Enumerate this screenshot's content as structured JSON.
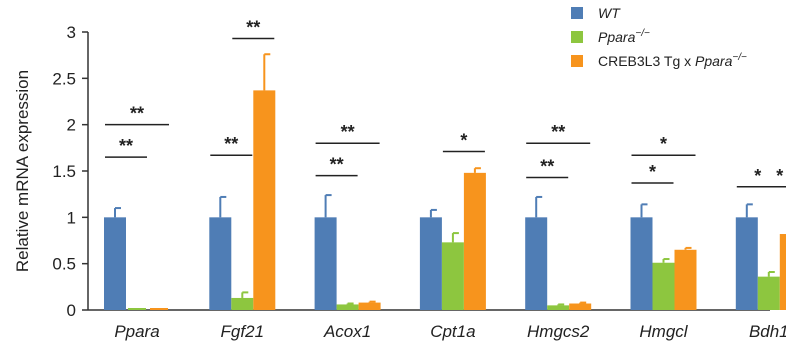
{
  "chart_data": {
    "type": "bar",
    "ylabel": "Relative mRNA expression",
    "ylim": [
      0,
      3
    ],
    "yticks": [
      "0",
      "0.5",
      "1",
      "1.5",
      "2",
      "2.5",
      "3"
    ],
    "grid": false,
    "legend_position": "top-right",
    "categories": [
      "Ppara",
      "Fgf21",
      "Acox1",
      "Cpt1a",
      "Hmgcs2",
      "Hmgcl",
      "Bdh1"
    ],
    "series": [
      {
        "name": "WT",
        "name_italic": true,
        "color": "#4f7db5",
        "values": [
          1.0,
          1.0,
          1.0,
          1.0,
          1.0,
          1.0,
          1.0
        ],
        "errors": [
          0.1,
          0.22,
          0.24,
          0.08,
          0.22,
          0.14,
          0.14
        ]
      },
      {
        "name_prefix": "",
        "name": "Ppara",
        "name_sup": "−/−",
        "color": "#8dc63f",
        "values": [
          0.0,
          0.13,
          0.06,
          0.73,
          0.05,
          0.51,
          0.36
        ],
        "errors": [
          0.0,
          0.06,
          0.01,
          0.1,
          0.01,
          0.04,
          0.05
        ]
      },
      {
        "name_prefix": "CREB3L3 Tg x ",
        "name": "Ppara",
        "name_sup": "−/−",
        "color": "#f7941d",
        "values": [
          0.0,
          2.37,
          0.08,
          1.48,
          0.07,
          0.65,
          0.82
        ],
        "errors": [
          0.0,
          0.39,
          0.01,
          0.05,
          0.01,
          0.02,
          0.1
        ]
      }
    ],
    "annotations": [
      {
        "category": 0,
        "from": 0,
        "to": 1,
        "y": 1.65,
        "label": "**"
      },
      {
        "category": 0,
        "from": 0,
        "to": 2,
        "y": 2.0,
        "label": "**"
      },
      {
        "category": 1,
        "from": 0,
        "to": 1,
        "y": 1.67,
        "label": "**"
      },
      {
        "category": 1,
        "from": 1,
        "to": 2,
        "y": 2.93,
        "label": "**"
      },
      {
        "category": 2,
        "from": 0,
        "to": 1,
        "y": 1.45,
        "label": "**"
      },
      {
        "category": 2,
        "from": 0,
        "to": 2,
        "y": 1.8,
        "label": "**"
      },
      {
        "category": 3,
        "from": 1,
        "to": 2,
        "y": 1.71,
        "label": "*"
      },
      {
        "category": 4,
        "from": 0,
        "to": 1,
        "y": 1.43,
        "label": "**"
      },
      {
        "category": 4,
        "from": 0,
        "to": 2,
        "y": 1.8,
        "label": "**"
      },
      {
        "category": 5,
        "from": 0,
        "to": 1,
        "y": 1.37,
        "label": "*"
      },
      {
        "category": 5,
        "from": 0,
        "to": 2,
        "y": 1.67,
        "label": "*"
      },
      {
        "category": 6,
        "from": 0,
        "to": 1,
        "y": 1.33,
        "label": "*"
      },
      {
        "category": 6,
        "from": 1,
        "to": 2,
        "y": 1.33,
        "label": "*"
      }
    ]
  }
}
